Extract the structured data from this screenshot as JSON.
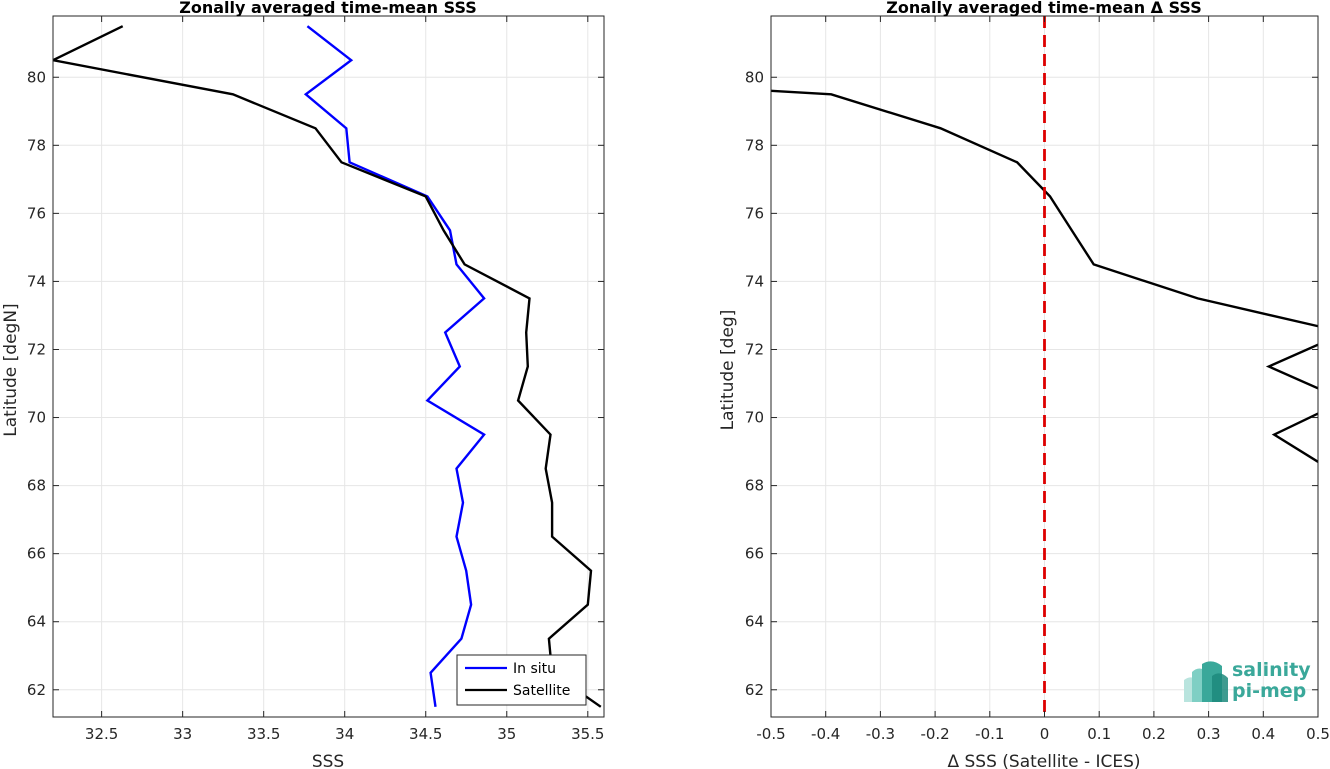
{
  "chart_data": [
    {
      "type": "line",
      "title": "Zonally averaged time-mean SSS",
      "xlabel": "SSS",
      "ylabel": "Latitude [degN]",
      "xlim": [
        32.2,
        35.6
      ],
      "ylim": [
        61.2,
        81.8
      ],
      "xticks": [
        32.5,
        33,
        33.5,
        34,
        34.5,
        35,
        35.5
      ],
      "yticks": [
        62,
        64,
        66,
        68,
        70,
        72,
        74,
        76,
        78,
        80
      ],
      "grid": true,
      "legend": "bottom-right",
      "series": [
        {
          "name": "In situ",
          "color": "#0000ff",
          "points": [
            [
              34.56,
              61.5
            ],
            [
              34.53,
              62.5
            ],
            [
              34.72,
              63.5
            ],
            [
              34.78,
              64.5
            ],
            [
              34.75,
              65.5
            ],
            [
              34.69,
              66.5
            ],
            [
              34.73,
              67.5
            ],
            [
              34.69,
              68.5
            ],
            [
              34.86,
              69.5
            ],
            [
              34.51,
              70.5
            ],
            [
              34.71,
              71.5
            ],
            [
              34.62,
              72.5
            ],
            [
              34.86,
              73.5
            ],
            [
              34.69,
              74.5
            ],
            [
              34.65,
              75.5
            ],
            [
              34.51,
              76.5
            ],
            [
              34.03,
              77.5
            ],
            [
              34.01,
              78.5
            ],
            [
              33.76,
              79.5
            ],
            [
              34.04,
              80.5
            ],
            [
              33.77,
              81.5
            ]
          ]
        },
        {
          "name": "Satellite",
          "color": "#000000",
          "points": [
            [
              35.58,
              61.5
            ],
            [
              35.28,
              62.5
            ],
            [
              35.26,
              63.5
            ],
            [
              35.5,
              64.5
            ],
            [
              35.52,
              65.5
            ],
            [
              35.28,
              66.5
            ],
            [
              35.28,
              67.5
            ],
            [
              35.24,
              68.5
            ],
            [
              35.27,
              69.5
            ],
            [
              35.07,
              70.5
            ],
            [
              35.13,
              71.5
            ],
            [
              35.12,
              72.5
            ],
            [
              35.14,
              73.5
            ],
            [
              34.74,
              74.5
            ],
            [
              34.61,
              75.5
            ],
            [
              34.5,
              76.5
            ],
            [
              33.98,
              77.5
            ],
            [
              33.82,
              78.5
            ],
            [
              33.31,
              79.5
            ],
            [
              32.2,
              80.5
            ],
            [
              32.63,
              81.5
            ]
          ]
        }
      ]
    },
    {
      "type": "line",
      "title": "Zonally averaged time-mean Δ SSS",
      "xlabel": "Δ SSS (Satellite - ICES)",
      "ylabel": "Latitude [deg]",
      "xlim": [
        -0.5,
        0.5
      ],
      "ylim": [
        61.2,
        81.8
      ],
      "xticks": [
        -0.5,
        -0.4,
        -0.3,
        -0.2,
        -0.1,
        0,
        0.1,
        0.2,
        0.3,
        0.4,
        0.5
      ],
      "yticks": [
        62,
        64,
        66,
        68,
        70,
        72,
        74,
        76,
        78,
        80
      ],
      "grid": true,
      "reference_line": {
        "x": 0,
        "color": "#dd0000",
        "style": "dashed"
      },
      "series": [
        {
          "color": "#000000",
          "points": [
            [
              0.52,
              68.5
            ],
            [
              0.42,
              69.5
            ],
            [
              0.55,
              70.5
            ],
            [
              0.41,
              71.5
            ],
            [
              0.55,
              72.5
            ],
            [
              0.28,
              73.5
            ],
            [
              0.09,
              74.5
            ],
            [
              0.05,
              75.5
            ],
            [
              0.01,
              76.5
            ],
            [
              -0.05,
              77.5
            ],
            [
              -0.19,
              78.5
            ],
            [
              -0.39,
              79.5
            ],
            [
              -0.55,
              79.65
            ]
          ]
        }
      ]
    }
  ],
  "logo": {
    "line1": "salinity",
    "line2": "pi-mep",
    "color": "#3aa89a"
  }
}
